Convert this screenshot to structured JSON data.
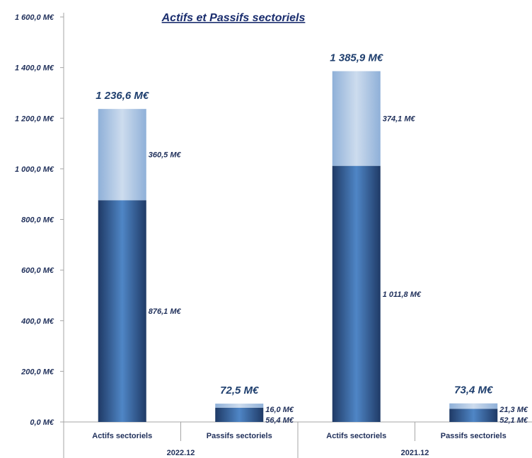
{
  "chart_data": {
    "type": "bar",
    "stacked": true,
    "title": "Actifs et Passifs sectoriels",
    "y_ticks": [
      "0,0 M€",
      "200,0 M€",
      "400,0 M€",
      "600,0 M€",
      "800,0 M€",
      "1 000,0 M€",
      "1 200,0 M€",
      "1 400,0 M€",
      "1 600,0 M€"
    ],
    "ylim": [
      0,
      1600
    ],
    "grid": false,
    "legend": "none",
    "groups": [
      {
        "label": "2022.12",
        "categories": [
          {
            "label": "Actifs sectoriels",
            "total": 1236.6,
            "total_label": "1 236,6 M€",
            "segments": [
              {
                "value": 876.1,
                "label": "876,1 M€"
              },
              {
                "value": 360.5,
                "label": "360,5 M€"
              }
            ]
          },
          {
            "label": "Passifs sectoriels",
            "total": 72.5,
            "total_label": "72,5 M€",
            "segments": [
              {
                "value": 56.4,
                "label": "56,4 M€"
              },
              {
                "value": 16.0,
                "label": "16,0 M€"
              }
            ]
          }
        ]
      },
      {
        "label": "2021.12",
        "categories": [
          {
            "label": "Actifs sectoriels",
            "total": 1385.9,
            "total_label": "1 385,9 M€",
            "segments": [
              {
                "value": 1011.8,
                "label": "1 011,8 M€"
              },
              {
                "value": 374.1,
                "label": "374,1 M€"
              }
            ]
          },
          {
            "label": "Passifs sectoriels",
            "total": 73.4,
            "total_label": "73,4 M€",
            "segments": [
              {
                "value": 52.1,
                "label": "52,1 M€"
              },
              {
                "value": 21.3,
                "label": "21,3 M€"
              }
            ]
          }
        ]
      }
    ],
    "colors": {
      "bottom_dark": "#1f3a66",
      "bottom_light": "#4f86c6",
      "top_dark": "#8fb0d8",
      "top_light": "#cddcee",
      "text": "#1f2f5a",
      "title": "#1a2d6e"
    }
  }
}
